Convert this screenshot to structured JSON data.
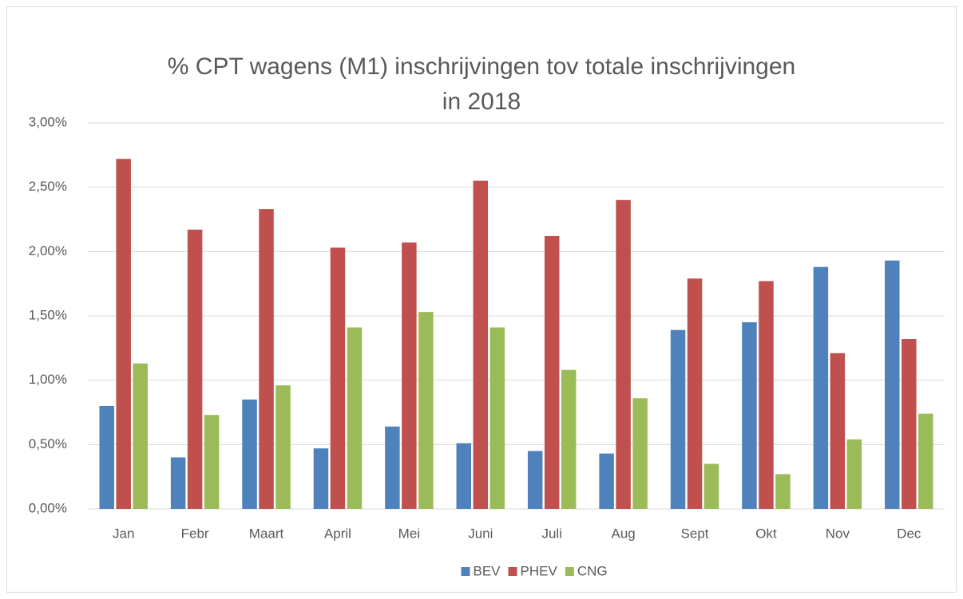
{
  "chart_data": {
    "type": "bar",
    "title": "% CPT wagens (M1) inschrijvingen tov totale inschrijvingen in 2018",
    "categories": [
      "Jan",
      "Febr",
      "Maart",
      "April",
      "Mei",
      "Juni",
      "Juli",
      "Aug",
      "Sept",
      "Okt",
      "Nov",
      "Dec"
    ],
    "series": [
      {
        "name": "BEV",
        "color": "#4f81bd",
        "values": [
          0.8,
          0.4,
          0.85,
          0.47,
          0.64,
          0.51,
          0.45,
          0.43,
          1.39,
          1.45,
          1.88,
          1.93
        ]
      },
      {
        "name": "PHEV",
        "color": "#c0504d",
        "values": [
          2.72,
          2.17,
          2.33,
          2.03,
          2.07,
          2.55,
          2.12,
          2.4,
          1.79,
          1.77,
          1.21,
          1.32
        ]
      },
      {
        "name": "CNG",
        "color": "#9bbb59",
        "values": [
          1.13,
          0.73,
          0.96,
          1.41,
          1.53,
          1.41,
          1.08,
          0.86,
          0.35,
          0.27,
          0.54,
          0.74
        ]
      }
    ],
    "ylim": [
      0,
      3
    ],
    "yticks": [
      {
        "value": 0,
        "label": "0,00%"
      },
      {
        "value": 0.5,
        "label": "0,50%"
      },
      {
        "value": 1,
        "label": "1,00%"
      },
      {
        "value": 1.5,
        "label": "1,50%"
      },
      {
        "value": 2,
        "label": "2,00%"
      },
      {
        "value": 2.5,
        "label": "2,50%"
      },
      {
        "value": 3,
        "label": "3,00%"
      }
    ],
    "grid": true,
    "legend": "bottom"
  }
}
